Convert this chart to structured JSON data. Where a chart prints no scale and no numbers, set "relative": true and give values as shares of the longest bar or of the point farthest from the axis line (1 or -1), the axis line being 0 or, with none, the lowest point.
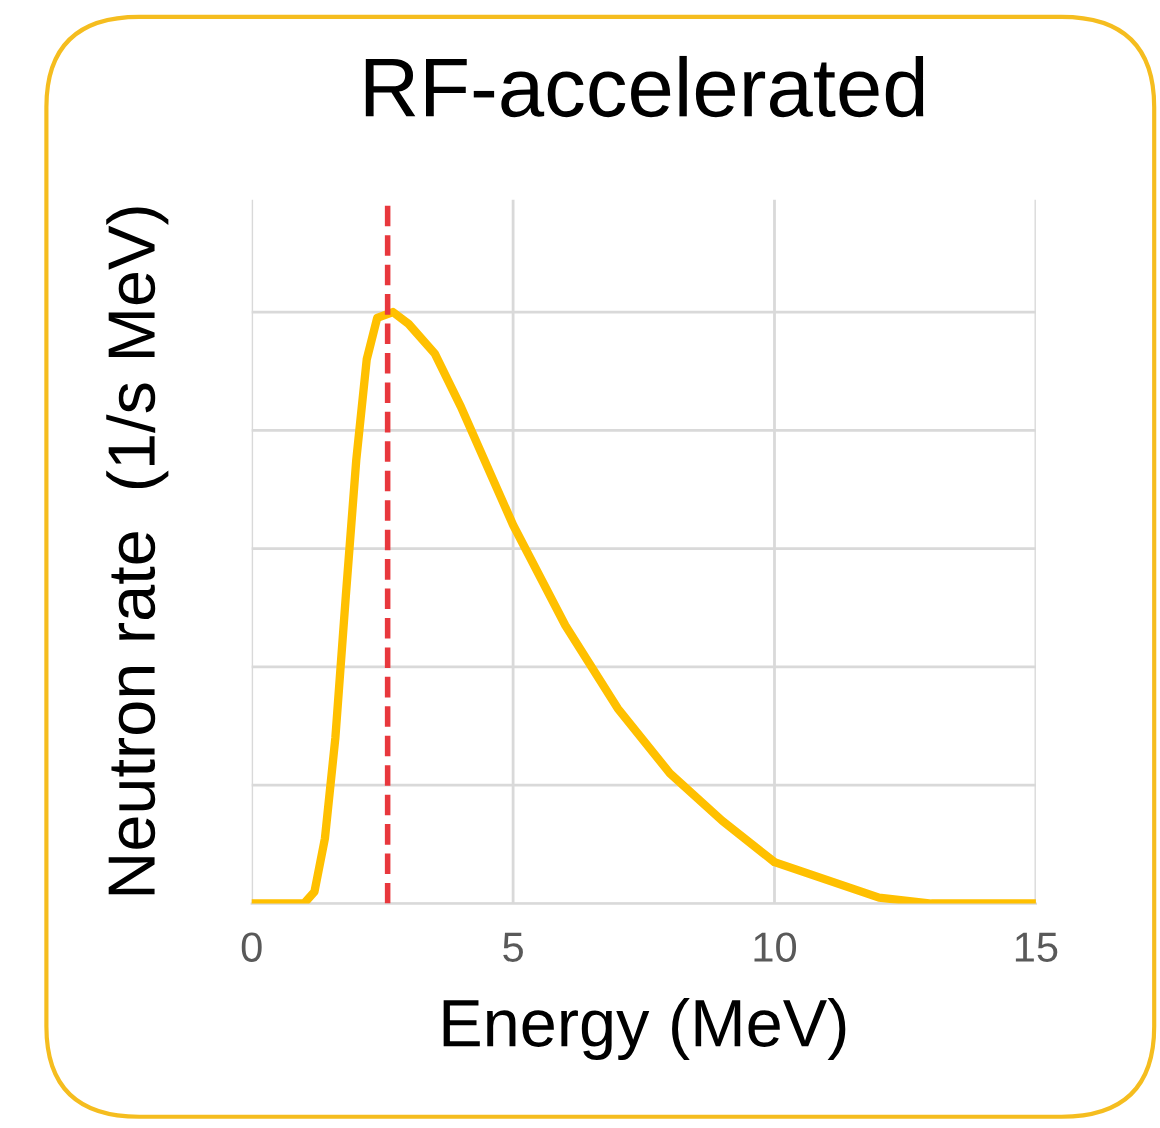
{
  "chart_data": {
    "type": "line",
    "title": "RF-accelerated",
    "xlabel": "Energy (MeV)",
    "ylabel": "Neutron rate  (1/s MeV)",
    "relative": true,
    "xlim": [
      0,
      15
    ],
    "xticks": [
      0,
      5,
      10,
      15
    ],
    "grid": true,
    "marker": "none",
    "line_style": "solid",
    "series": [
      {
        "color": "#ffc000",
        "x": [
          0,
          1.0,
          1.2,
          1.4,
          1.6,
          1.8,
          2.0,
          2.2,
          2.4,
          2.7,
          3.0,
          3.5,
          4.0,
          5.0,
          6.0,
          7.0,
          8.0,
          9.0,
          10,
          11,
          12,
          13,
          15
        ],
        "values": [
          0,
          0,
          0.02,
          0.11,
          0.28,
          0.52,
          0.75,
          0.92,
          0.99,
          1.0,
          0.98,
          0.93,
          0.84,
          0.64,
          0.47,
          0.33,
          0.22,
          0.14,
          0.07,
          0.04,
          0.01,
          0,
          0
        ]
      }
    ],
    "ref_lines": [
      {
        "axis": "x",
        "value": 2.6,
        "color": "#e8383d",
        "line_style": "dashed"
      }
    ]
  }
}
